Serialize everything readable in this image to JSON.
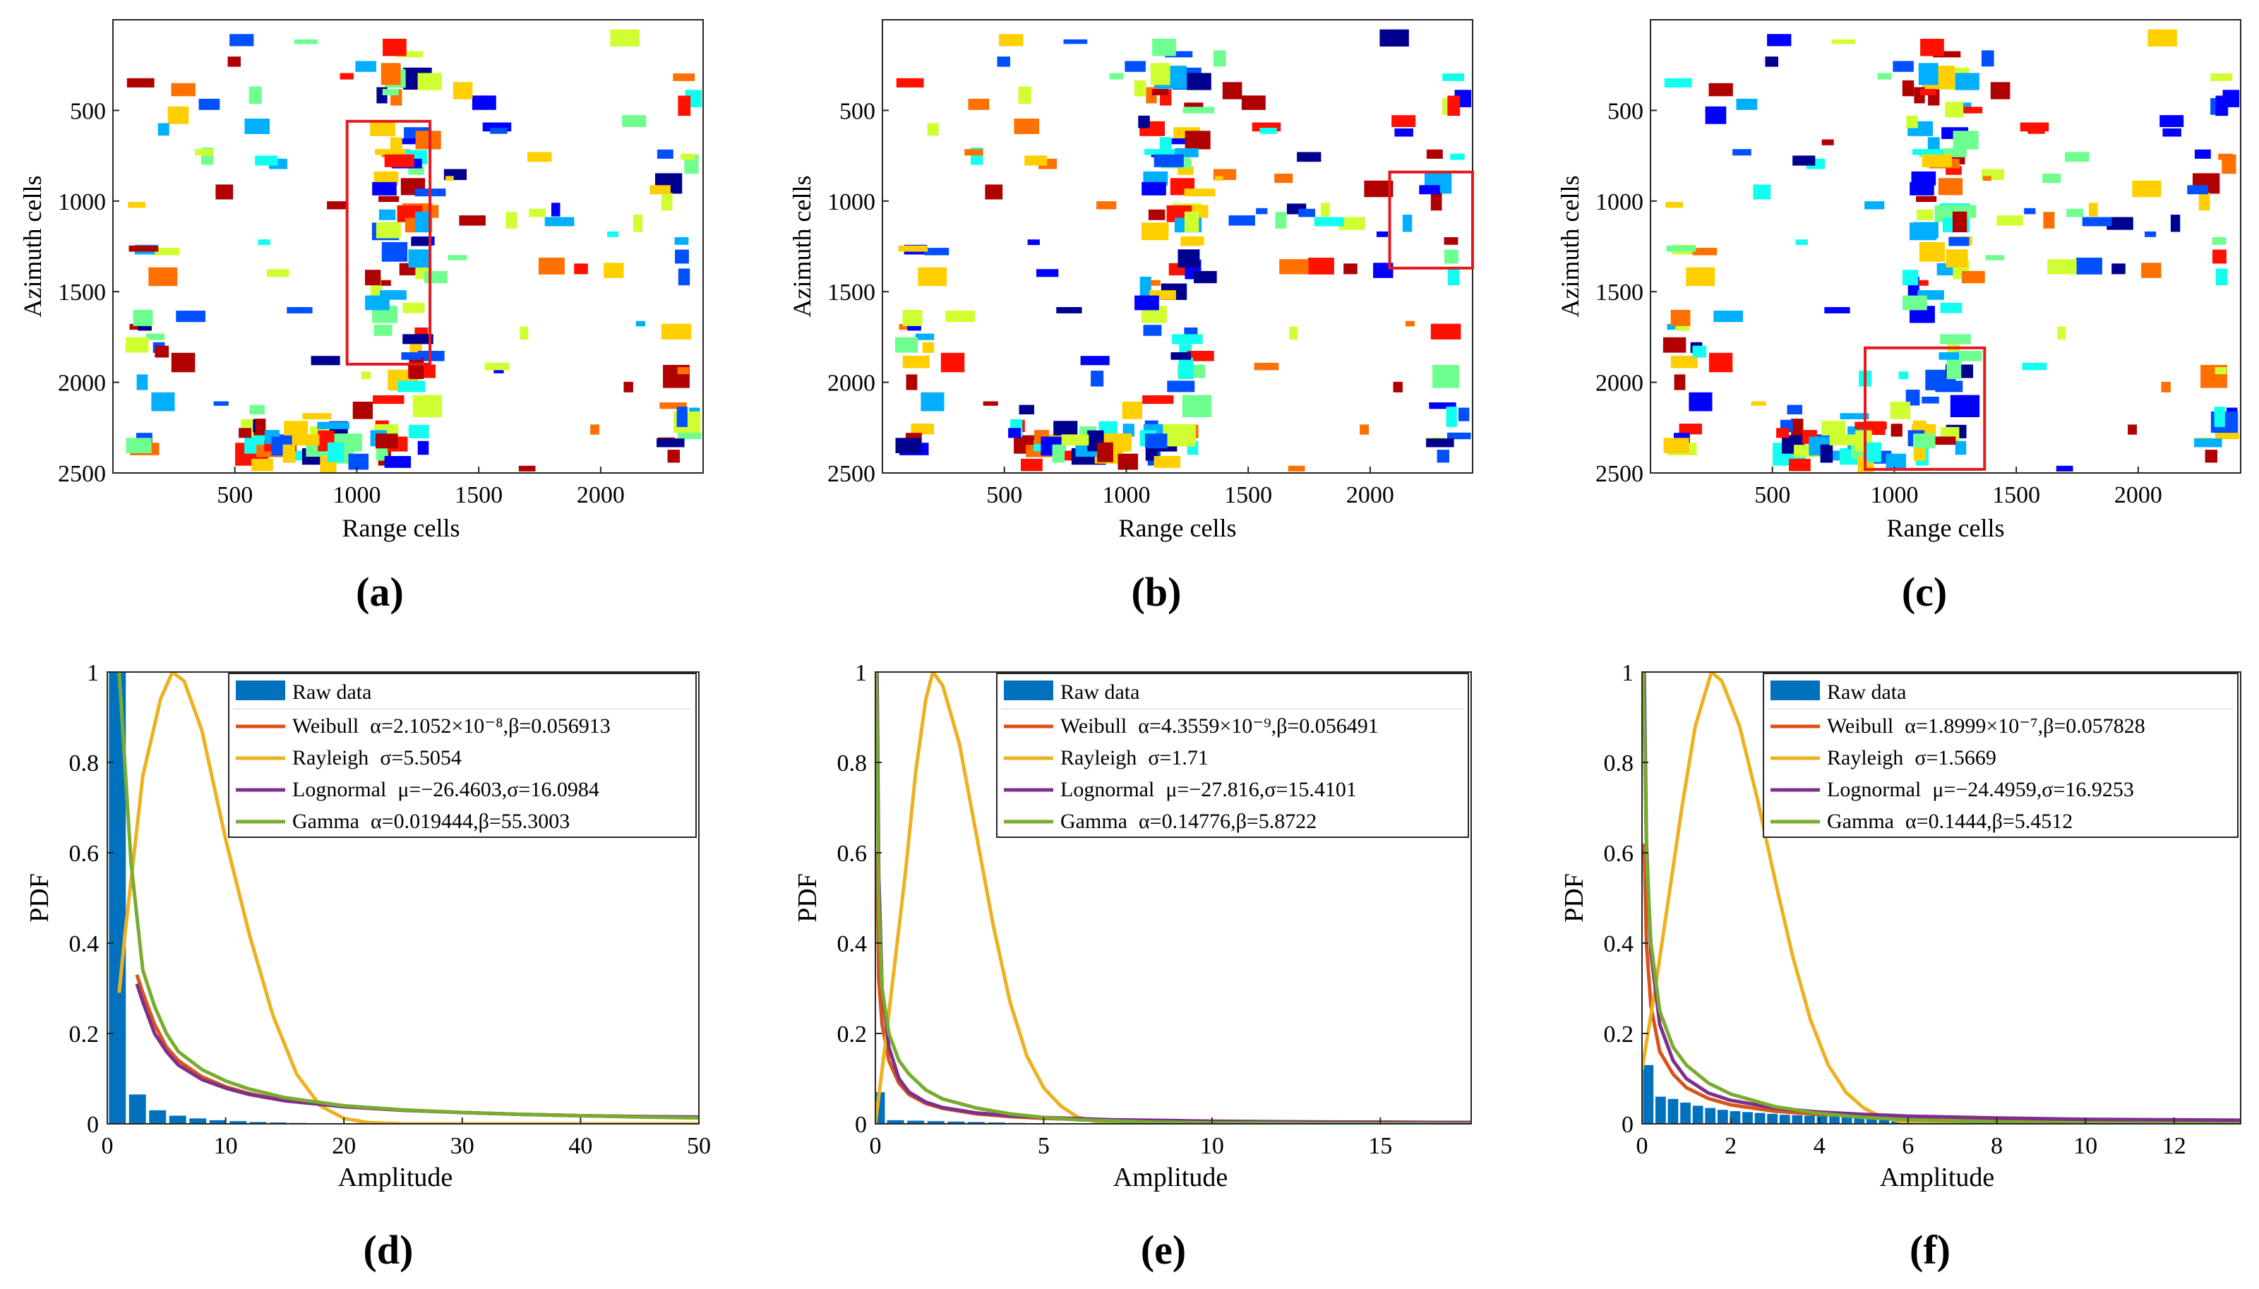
{
  "colors": {
    "raw": "#0072BD",
    "weibull": "#D95319",
    "rayleigh": "#EDB120",
    "lognormal": "#7E2F8E",
    "gamma": "#77AC30",
    "box": "#E4191E"
  },
  "panel_labels": [
    "(a)",
    "(b)",
    "(c)",
    "(d)",
    "(e)",
    "(f)"
  ],
  "chart_data": [
    {
      "panel": "(a)",
      "type": "heatmap",
      "xlabel": "Range cells",
      "ylabel": "Azimuth cells",
      "xticks": [
        500,
        1000,
        1500,
        2000
      ],
      "yticks": [
        500,
        1000,
        1500,
        2000,
        2500
      ],
      "xlim": [
        0,
        2420
      ],
      "ylim": [
        0,
        2500
      ],
      "y_reversed": true,
      "highlight_box": {
        "x": [
          960,
          1300
        ],
        "y": [
          560,
          1900
        ]
      }
    },
    {
      "panel": "(b)",
      "type": "heatmap",
      "xlabel": "Range cells",
      "ylabel": "Azimuth cells",
      "xticks": [
        500,
        1000,
        1500,
        2000
      ],
      "yticks": [
        500,
        1000,
        1500,
        2000,
        2500
      ],
      "xlim": [
        0,
        2420
      ],
      "ylim": [
        0,
        2500
      ],
      "y_reversed": true,
      "highlight_box": {
        "x": [
          2080,
          2420
        ],
        "y": [
          840,
          1370
        ]
      }
    },
    {
      "panel": "(c)",
      "type": "heatmap",
      "xlabel": "Range cells",
      "ylabel": "Azimuth cells",
      "xticks": [
        500,
        1000,
        1500,
        2000
      ],
      "yticks": [
        500,
        1000,
        1500,
        2000,
        2500
      ],
      "xlim": [
        0,
        2420
      ],
      "ylim": [
        0,
        2500
      ],
      "y_reversed": true,
      "highlight_box": {
        "x": [
          880,
          1370
        ],
        "y": [
          1810,
          2480
        ]
      }
    },
    {
      "panel": "(d)",
      "type": "line",
      "xlabel": "Amplitude",
      "ylabel": "PDF",
      "xlim": [
        0,
        50
      ],
      "ylim": [
        0,
        1
      ],
      "xticks": [
        0,
        10,
        20,
        30,
        40,
        50
      ],
      "yticks": [
        0,
        0.2,
        0.4,
        0.6,
        0.8,
        1
      ],
      "histogram": {
        "name": "Raw data",
        "bin_width": 1.7,
        "centers": [
          0.85,
          2.55,
          4.25,
          5.95,
          7.65,
          9.35,
          11.05,
          12.75,
          14.45,
          16.15
        ],
        "values": [
          1.0,
          0.065,
          0.03,
          0.018,
          0.012,
          0.008,
          0.006,
          0.004,
          0.003,
          0.002
        ]
      },
      "series": [
        {
          "name": "Weibull",
          "params": "α=2.1052×10⁻⁸,β=0.056913",
          "x": [
            2.5,
            3,
            4,
            5,
            6,
            8,
            10,
            12,
            15,
            20,
            25,
            30,
            35,
            40,
            45,
            50
          ],
          "values": [
            0.33,
            0.29,
            0.22,
            0.17,
            0.14,
            0.104,
            0.082,
            0.067,
            0.052,
            0.038,
            0.03,
            0.025,
            0.021,
            0.018,
            0.016,
            0.014
          ]
        },
        {
          "name": "Rayleigh",
          "params": "σ=5.5054",
          "x": [
            1,
            1.5,
            3,
            4.5,
            5.5,
            6.5,
            8,
            10,
            12,
            14,
            16,
            18,
            20,
            22,
            25,
            30,
            40,
            50
          ],
          "values": [
            0.29,
            0.42,
            0.77,
            0.94,
            1.0,
            0.98,
            0.87,
            0.63,
            0.42,
            0.24,
            0.11,
            0.04,
            0.012,
            0.003,
            0.0,
            0.0,
            0.0,
            0.0
          ]
        },
        {
          "name": "Lognormal",
          "params": "μ=−26.4603,σ=16.0984",
          "x": [
            2.5,
            3,
            4,
            5,
            6,
            8,
            10,
            12,
            15,
            20,
            25,
            30,
            35,
            40,
            45,
            50
          ],
          "values": [
            0.31,
            0.27,
            0.2,
            0.16,
            0.13,
            0.098,
            0.079,
            0.065,
            0.051,
            0.038,
            0.03,
            0.025,
            0.021,
            0.018,
            0.016,
            0.015
          ]
        },
        {
          "name": "Gamma",
          "params": "α=0.019444,β=55.3003",
          "x": [
            1,
            2,
            3,
            4,
            5,
            6,
            8,
            10,
            12,
            15,
            20,
            25,
            30,
            35,
            40,
            45,
            50
          ],
          "values": [
            1.0,
            0.58,
            0.34,
            0.26,
            0.2,
            0.16,
            0.12,
            0.095,
            0.077,
            0.058,
            0.04,
            0.031,
            0.025,
            0.021,
            0.018,
            0.015,
            0.013
          ]
        }
      ]
    },
    {
      "panel": "(e)",
      "type": "line",
      "xlabel": "Amplitude",
      "ylabel": "PDF",
      "xlim": [
        0,
        17.7
      ],
      "ylim": [
        0,
        1
      ],
      "xticks": [
        0,
        5,
        10,
        15
      ],
      "yticks": [
        0,
        0.2,
        0.4,
        0.6,
        0.8,
        1
      ],
      "histogram": {
        "name": "Raw data",
        "bin_width": 0.6,
        "centers": [
          0.03,
          0.6,
          1.2,
          1.8,
          2.4,
          3.0,
          3.6,
          4.2
        ],
        "values": [
          0.07,
          0.008,
          0.007,
          0.006,
          0.005,
          0.004,
          0.003,
          0.002
        ]
      },
      "series": [
        {
          "name": "Weibull",
          "params": "α=4.3559×10⁻⁹,β=0.056491",
          "x": [
            0.05,
            0.1,
            0.2,
            0.4,
            0.7,
            1,
            1.5,
            2,
            3,
            4,
            5,
            7,
            10,
            13,
            17.7
          ],
          "values": [
            0.6,
            0.32,
            0.22,
            0.14,
            0.09,
            0.065,
            0.045,
            0.034,
            0.022,
            0.016,
            0.012,
            0.008,
            0.005,
            0.004,
            0.003
          ]
        },
        {
          "name": "Rayleigh",
          "params": "σ=1.71",
          "x": [
            0,
            0.3,
            0.6,
            0.9,
            1.2,
            1.5,
            1.71,
            2,
            2.5,
            3,
            3.5,
            4,
            4.5,
            5,
            5.5,
            6,
            6.5,
            7,
            8,
            10,
            17.7
          ],
          "values": [
            0.0,
            0.18,
            0.37,
            0.56,
            0.78,
            0.94,
            1.0,
            0.97,
            0.84,
            0.64,
            0.44,
            0.27,
            0.15,
            0.08,
            0.04,
            0.015,
            0.006,
            0.002,
            0.0,
            0.0,
            0.0
          ]
        },
        {
          "name": "Lognormal",
          "params": "μ=−27.816,σ=15.4101",
          "x": [
            0.05,
            0.1,
            0.2,
            0.4,
            0.7,
            1,
            1.5,
            2,
            3,
            4,
            5,
            7,
            10,
            13,
            17.7
          ],
          "values": [
            1.0,
            0.55,
            0.3,
            0.17,
            0.1,
            0.07,
            0.048,
            0.036,
            0.024,
            0.018,
            0.014,
            0.009,
            0.006,
            0.004,
            0.003
          ]
        },
        {
          "name": "Gamma",
          "params": "α=0.14776,β=5.8722",
          "x": [
            0.03,
            0.1,
            0.2,
            0.4,
            0.7,
            1,
            1.5,
            2,
            3,
            4,
            5,
            6,
            8,
            10,
            13,
            17.7
          ],
          "values": [
            1.0,
            0.48,
            0.3,
            0.2,
            0.14,
            0.11,
            0.075,
            0.055,
            0.035,
            0.022,
            0.014,
            0.009,
            0.004,
            0.002,
            0.001,
            0.0
          ]
        }
      ]
    },
    {
      "panel": "(f)",
      "type": "line",
      "xlabel": "Amplitude",
      "ylabel": "PDF",
      "xlim": [
        0,
        13.5
      ],
      "ylim": [
        0,
        1
      ],
      "xticks": [
        0,
        2,
        4,
        6,
        8,
        10,
        12
      ],
      "yticks": [
        0,
        0.2,
        0.4,
        0.6,
        0.8,
        1
      ],
      "histogram": {
        "name": "Raw data",
        "bin_width": 0.28,
        "centers": [
          0.14,
          0.42,
          0.7,
          0.98,
          1.26,
          1.54,
          1.82,
          2.1,
          2.38,
          2.66,
          2.94,
          3.22,
          3.5,
          3.78,
          4.06,
          4.34,
          4.62,
          4.9,
          5.18,
          5.46,
          5.74,
          6.02,
          6.3,
          6.58,
          6.86,
          7.14,
          7.42,
          7.7,
          7.98,
          8.26,
          8.54,
          8.82,
          9.1,
          9.38,
          9.66,
          9.94,
          10.22,
          10.5,
          10.78,
          11.06,
          11.34,
          11.62,
          11.9,
          12.18,
          12.46,
          12.74,
          13.02,
          13.3
        ],
        "values": [
          0.13,
          0.06,
          0.055,
          0.047,
          0.04,
          0.035,
          0.031,
          0.028,
          0.026,
          0.024,
          0.022,
          0.02,
          0.019,
          0.018,
          0.017,
          0.016,
          0.015,
          0.014,
          0.014,
          0.013,
          0.013,
          0.012,
          0.012,
          0.011,
          0.011,
          0.01,
          0.01,
          0.01,
          0.009,
          0.009,
          0.009,
          0.008,
          0.008,
          0.008,
          0.008,
          0.007,
          0.007,
          0.007,
          0.007,
          0.007,
          0.006,
          0.006,
          0.006,
          0.006,
          0.006,
          0.006,
          0.005,
          0.005
        ]
      },
      "series": [
        {
          "name": "Weibull",
          "params": "α=1.8999×10⁻⁷,β=0.057828",
          "x": [
            0.05,
            0.1,
            0.2,
            0.4,
            0.7,
            1,
            1.5,
            2,
            3,
            4,
            5,
            6,
            8,
            10,
            13.5
          ],
          "values": [
            0.62,
            0.4,
            0.26,
            0.16,
            0.11,
            0.08,
            0.056,
            0.042,
            0.028,
            0.021,
            0.017,
            0.014,
            0.01,
            0.008,
            0.006
          ]
        },
        {
          "name": "Rayleigh",
          "params": "σ=1.5669",
          "x": [
            0,
            0.3,
            0.6,
            0.9,
            1.2,
            1.5669,
            1.8,
            2.2,
            2.6,
            3,
            3.4,
            3.8,
            4.2,
            4.6,
            5,
            5.4,
            5.8,
            6.2,
            7,
            13.5
          ],
          "values": [
            0.12,
            0.3,
            0.5,
            0.7,
            0.88,
            1.0,
            0.98,
            0.88,
            0.72,
            0.54,
            0.37,
            0.23,
            0.13,
            0.07,
            0.035,
            0.015,
            0.006,
            0.002,
            0.0,
            0.0
          ]
        },
        {
          "name": "Lognormal",
          "params": "μ=−24.4959,σ=16.9253",
          "x": [
            0.05,
            0.1,
            0.2,
            0.4,
            0.7,
            1,
            1.5,
            2,
            3,
            4,
            5,
            6,
            8,
            10,
            13.5
          ],
          "values": [
            1.0,
            0.62,
            0.38,
            0.22,
            0.14,
            0.1,
            0.068,
            0.052,
            0.035,
            0.026,
            0.021,
            0.017,
            0.013,
            0.01,
            0.008
          ]
        },
        {
          "name": "Gamma",
          "params": "α=0.1444,β=5.4512",
          "x": [
            0.03,
            0.1,
            0.2,
            0.4,
            0.7,
            1,
            1.5,
            2,
            3,
            4,
            5,
            6,
            8,
            10,
            13.5
          ],
          "values": [
            1.0,
            0.6,
            0.4,
            0.25,
            0.17,
            0.13,
            0.09,
            0.066,
            0.038,
            0.023,
            0.014,
            0.009,
            0.004,
            0.002,
            0.0
          ]
        }
      ]
    }
  ]
}
